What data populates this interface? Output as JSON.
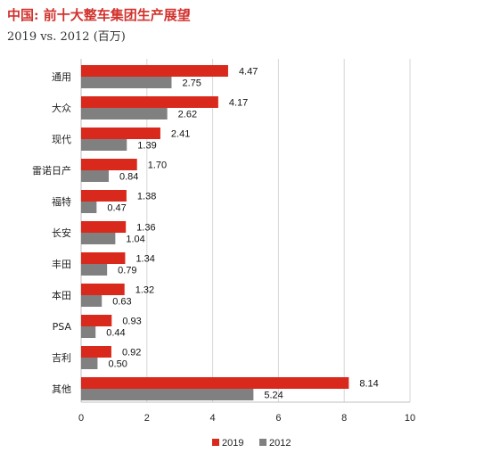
{
  "title": "中国: 前十大整车集团生产展望",
  "subtitle": "2019 vs. 2012 (百万)",
  "chart_data": {
    "type": "bar",
    "orientation": "horizontal",
    "categories": [
      "通用",
      "大众",
      "现代",
      "雷诺日产",
      "福特",
      "长安",
      "丰田",
      "本田",
      "PSA",
      "吉利",
      "其他"
    ],
    "series": [
      {
        "name": "2019",
        "color": "#d9291c",
        "values": [
          4.47,
          4.17,
          2.41,
          1.7,
          1.38,
          1.36,
          1.34,
          1.32,
          0.93,
          0.92,
          8.14
        ]
      },
      {
        "name": "2012",
        "color": "#808080",
        "values": [
          2.75,
          2.62,
          1.39,
          0.84,
          0.47,
          1.04,
          0.79,
          0.63,
          0.44,
          0.5,
          5.24
        ]
      }
    ],
    "value_labels": [
      [
        "4.47",
        "4.17",
        "2.41",
        "1.70",
        "1.38",
        "1.36",
        "1.34",
        "1.32",
        "0.93",
        "0.92",
        "8.14"
      ],
      [
        "2.75",
        "2.62",
        "1.39",
        "0.84",
        "0.47",
        "1.04",
        "0.79",
        "0.63",
        "0.44",
        "0.50",
        "5.24"
      ]
    ],
    "xlim": [
      0,
      10
    ],
    "xticks": [
      "0",
      "2",
      "4",
      "6",
      "8",
      "10"
    ],
    "grid": "vertical",
    "legend": "bottom",
    "xlabel": "",
    "ylabel": ""
  }
}
